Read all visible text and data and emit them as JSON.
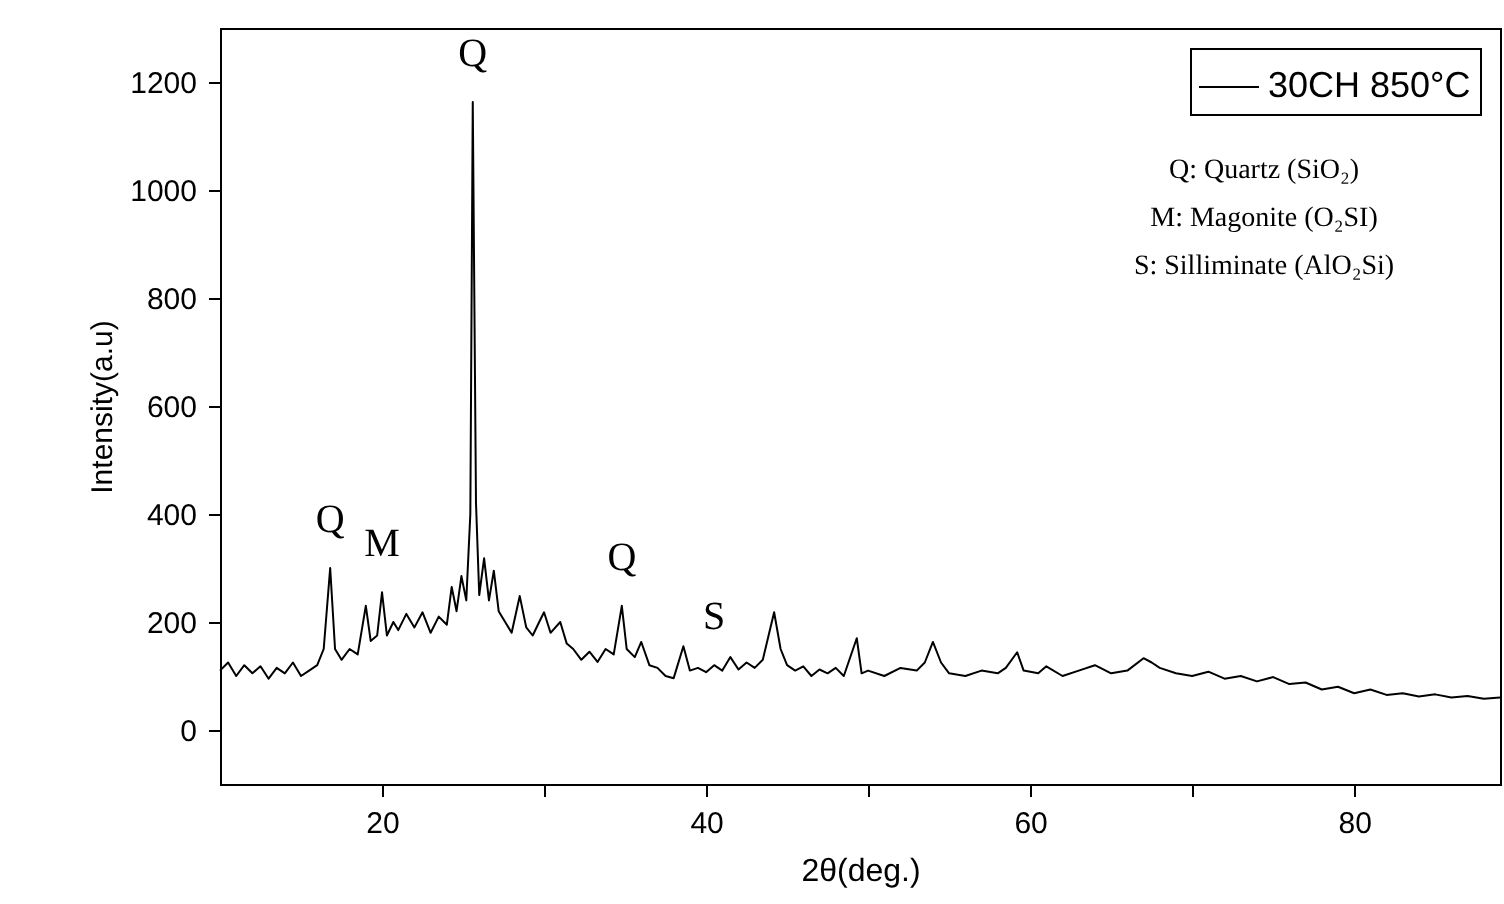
{
  "chart_data": {
    "type": "line",
    "xlabel": "2θ(deg.)",
    "ylabel": "Intensity(a.u)",
    "xlim": [
      10,
      89
    ],
    "xticks": [
      20,
      {
        "value": 30,
        "label": null
      },
      40,
      {
        "value": 50,
        "label": null
      },
      60,
      {
        "value": 70,
        "label": null
      },
      80
    ],
    "ylim": [
      -100,
      1300
    ],
    "yticks": [
      0,
      200,
      400,
      600,
      800,
      1000,
      1200
    ],
    "grid": false,
    "legend": "top right",
    "marker": "none",
    "line_style": "solid",
    "x": [
      10,
      10.5,
      11,
      11.5,
      12,
      12.5,
      13,
      13.5,
      14,
      14.5,
      15,
      15.5,
      16,
      16.4,
      16.8,
      17.1,
      17.5,
      18,
      18.5,
      19,
      19.3,
      19.7,
      20,
      20.3,
      20.7,
      21,
      21.5,
      22,
      22.5,
      23,
      23.5,
      24,
      24.3,
      24.6,
      24.9,
      25.2,
      25.45,
      25.6,
      25.8,
      26,
      26.3,
      26.6,
      26.9,
      27.2,
      27.6,
      28,
      28.5,
      28.9,
      29.3,
      29.7,
      30,
      30.4,
      31,
      31.4,
      31.8,
      32.3,
      32.8,
      33.3,
      33.8,
      34.3,
      34.8,
      35.1,
      35.6,
      36,
      36.5,
      37,
      37.5,
      38,
      38.6,
      39,
      39.5,
      40,
      40.5,
      41,
      41.5,
      42,
      42.5,
      43,
      43.5,
      44.2,
      44.6,
      45,
      45.5,
      46,
      46.5,
      47,
      47.5,
      48,
      48.5,
      49.3,
      49.6,
      50,
      51,
      52,
      53,
      53.5,
      54,
      54.5,
      55,
      56,
      57,
      58,
      58.5,
      59.2,
      59.6,
      60.5,
      61,
      62,
      63,
      64,
      65,
      66,
      67,
      67.5,
      68,
      69,
      70,
      71,
      72,
      73,
      74,
      75,
      76,
      77,
      78,
      79,
      80,
      81,
      82,
      83,
      84,
      85,
      86,
      87,
      88,
      89
    ],
    "series": [
      {
        "name": "30CH 850°C",
        "color": "#000000",
        "values": [
          110,
          125,
          100,
          120,
          105,
          118,
          95,
          115,
          105,
          125,
          100,
          110,
          120,
          150,
          300,
          150,
          130,
          150,
          140,
          230,
          165,
          175,
          255,
          175,
          200,
          185,
          215,
          190,
          218,
          180,
          210,
          195,
          265,
          220,
          285,
          240,
          400,
          1163,
          420,
          250,
          318,
          240,
          295,
          220,
          200,
          180,
          248,
          190,
          175,
          200,
          218,
          180,
          200,
          160,
          150,
          130,
          145,
          126,
          150,
          140,
          230,
          150,
          135,
          163,
          120,
          115,
          100,
          96,
          155,
          110,
          115,
          107,
          120,
          110,
          135,
          112,
          125,
          115,
          130,
          218,
          150,
          120,
          110,
          118,
          100,
          112,
          105,
          115,
          100,
          170,
          105,
          110,
          100,
          115,
          110,
          125,
          163,
          125,
          105,
          100,
          110,
          105,
          115,
          144,
          110,
          105,
          118,
          100,
          110,
          120,
          105,
          110,
          133,
          125,
          115,
          105,
          100,
          108,
          95,
          100,
          90,
          98,
          85,
          88,
          75,
          80,
          68,
          75,
          65,
          68,
          62,
          66,
          60,
          63,
          58,
          60
        ]
      }
    ],
    "annotations": [
      {
        "text": "Q",
        "x": 16.8,
        "y": 300
      },
      {
        "text": "M",
        "x": 20,
        "y": 255
      },
      {
        "text": "Q",
        "x": 25.6,
        "y": 1163
      },
      {
        "text": "Q",
        "x": 34.8,
        "y": 230
      },
      {
        "text": "S",
        "x": 40.5,
        "y": 120
      },
      "Q: Quartz (SiO₂)",
      "M: Magonite (O₂SI)",
      "S: Silliminate (AlO₂Si)"
    ]
  }
}
